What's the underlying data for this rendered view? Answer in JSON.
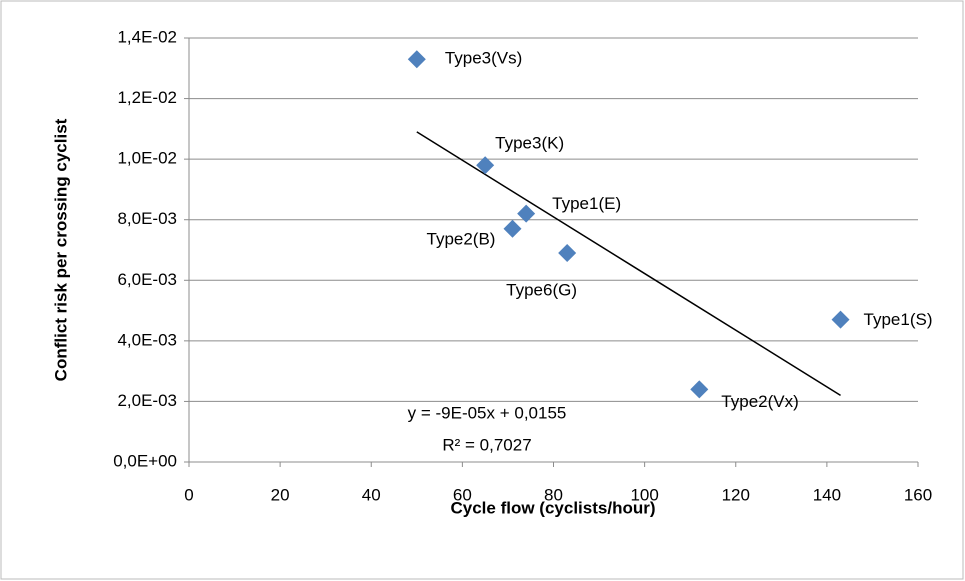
{
  "chart_data": {
    "type": "scatter",
    "xlabel": "Cycle flow (cyclists/hour)",
    "ylabel": "Conflict risk per crossing cyclist",
    "x": [
      50,
      65,
      74,
      71,
      83,
      143,
      112
    ],
    "values": [
      0.0133,
      0.0098,
      0.0082,
      0.0077,
      0.0069,
      0.0047,
      0.0024
    ],
    "labels": [
      "Type3(Vs)",
      "Type3(K)",
      "Type1(E)",
      "Type2(B)",
      "Type6(G)",
      "Type1(S)",
      "Type2(Vx)"
    ],
    "color": "#4f81bd",
    "trendline": {
      "x": [
        50,
        143
      ],
      "values": [
        0.0109,
        0.0022
      ],
      "color": "#000000"
    },
    "annotations": [
      "y = -9E-05x + 0,0155",
      "R² = 0,7027"
    ],
    "xlim": [
      0,
      160
    ],
    "xticks": [
      0,
      20,
      40,
      60,
      80,
      100,
      120,
      140,
      160
    ],
    "ylim": [
      0,
      0.014
    ],
    "yticks": [
      {
        "value": 0,
        "label": "0,0E+00"
      },
      {
        "value": 0.002,
        "label": "2,0E-03"
      },
      {
        "value": 0.004,
        "label": "4,0E-03"
      },
      {
        "value": 0.006,
        "label": "6,0E-03"
      },
      {
        "value": 0.008,
        "label": "8,0E-03"
      },
      {
        "value": 0.01,
        "label": "1,0E-02"
      },
      {
        "value": 0.012,
        "label": "1,2E-02"
      },
      {
        "value": 0.014,
        "label": "1,4E-02"
      }
    ],
    "grid": true
  }
}
